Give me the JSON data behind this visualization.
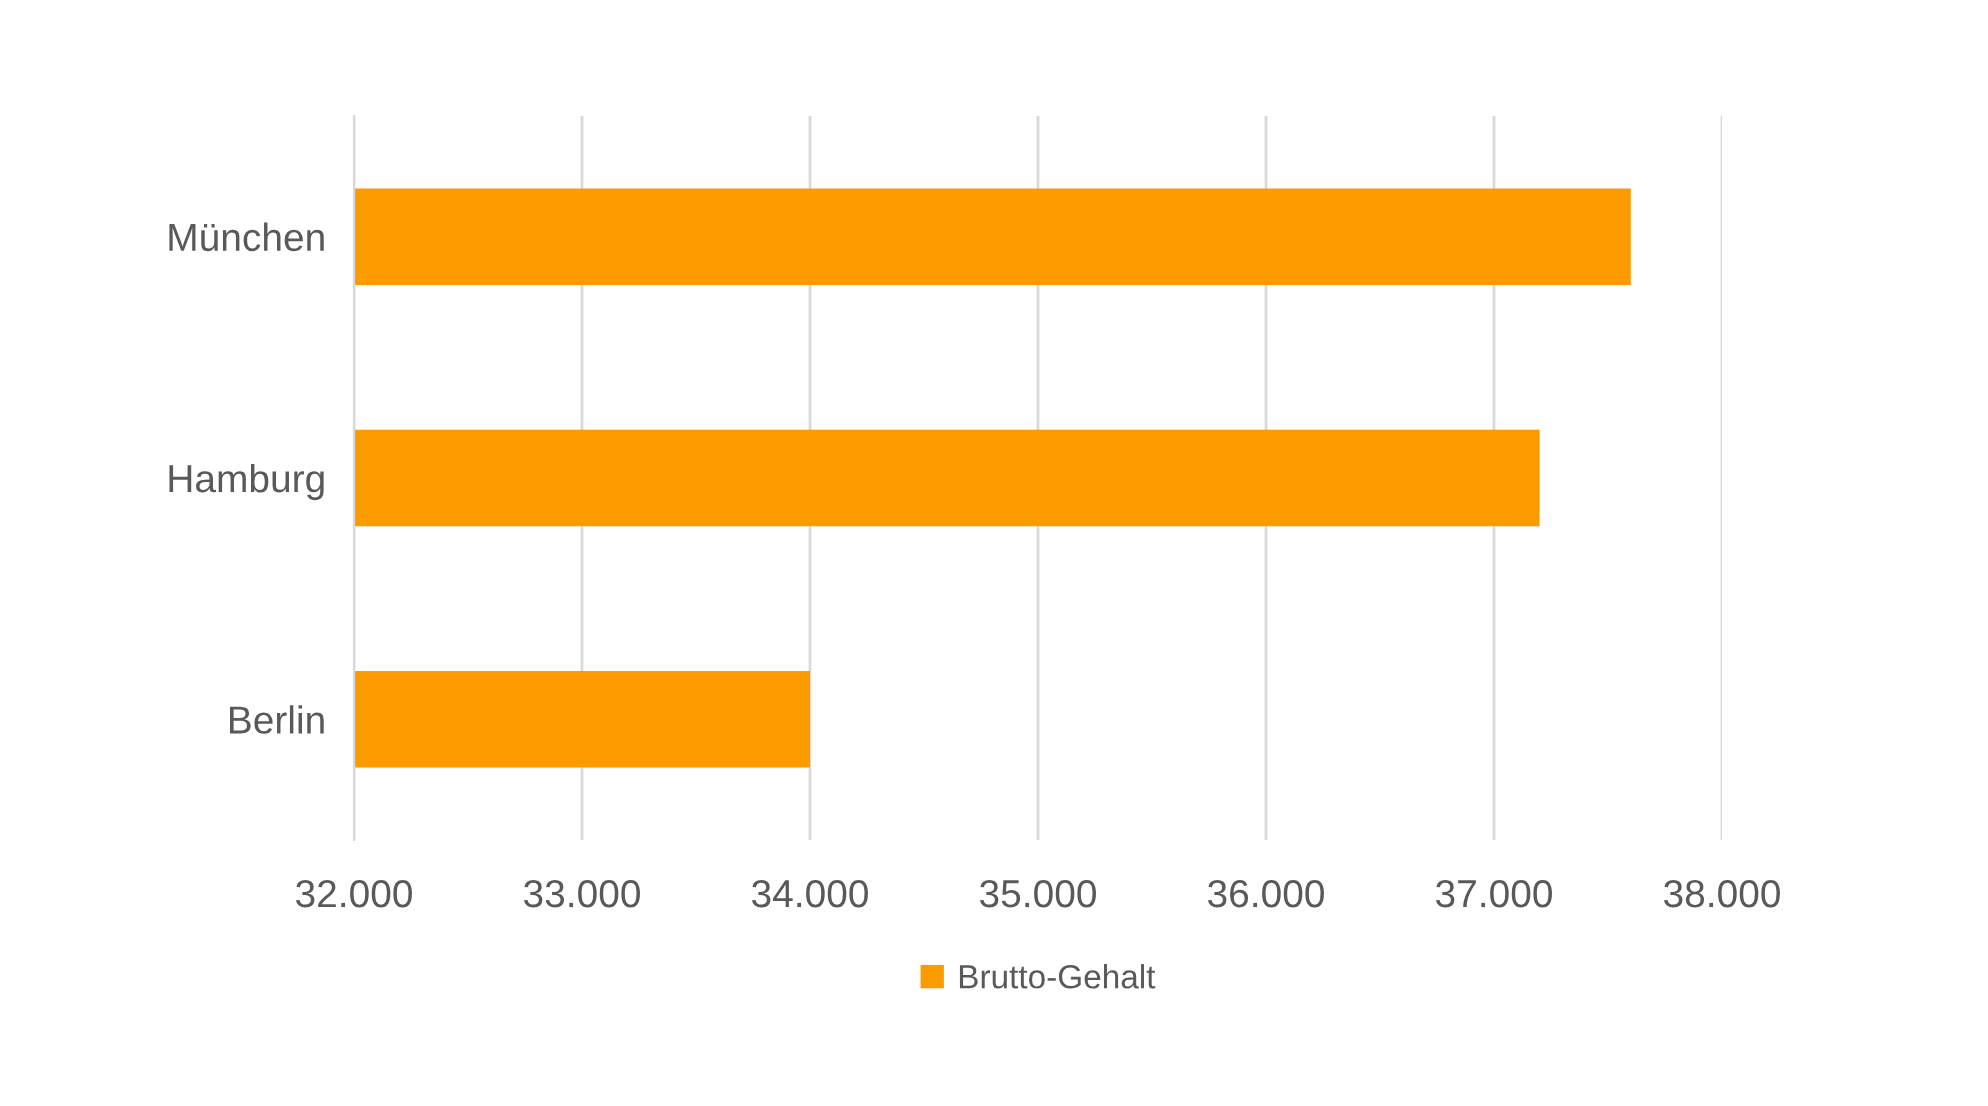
{
  "chart_data": {
    "type": "bar",
    "orientation": "horizontal",
    "categories": [
      "München",
      "Hamburg",
      "Berlin"
    ],
    "series": [
      {
        "name": "Brutto-Gehalt",
        "color": "#fb9b00",
        "values": [
          37600,
          37200,
          34000
        ]
      }
    ],
    "xlim": [
      32000,
      38000
    ],
    "xticks": [
      {
        "value": 32000,
        "label": "32.000"
      },
      {
        "value": 33000,
        "label": "33.000"
      },
      {
        "value": 34000,
        "label": "34.000"
      },
      {
        "value": 35000,
        "label": "35.000"
      },
      {
        "value": 36000,
        "label": "36.000"
      },
      {
        "value": 37000,
        "label": "37.000"
      },
      {
        "value": 38000,
        "label": "38.000"
      }
    ],
    "grid": "x",
    "legend": "bottom"
  }
}
